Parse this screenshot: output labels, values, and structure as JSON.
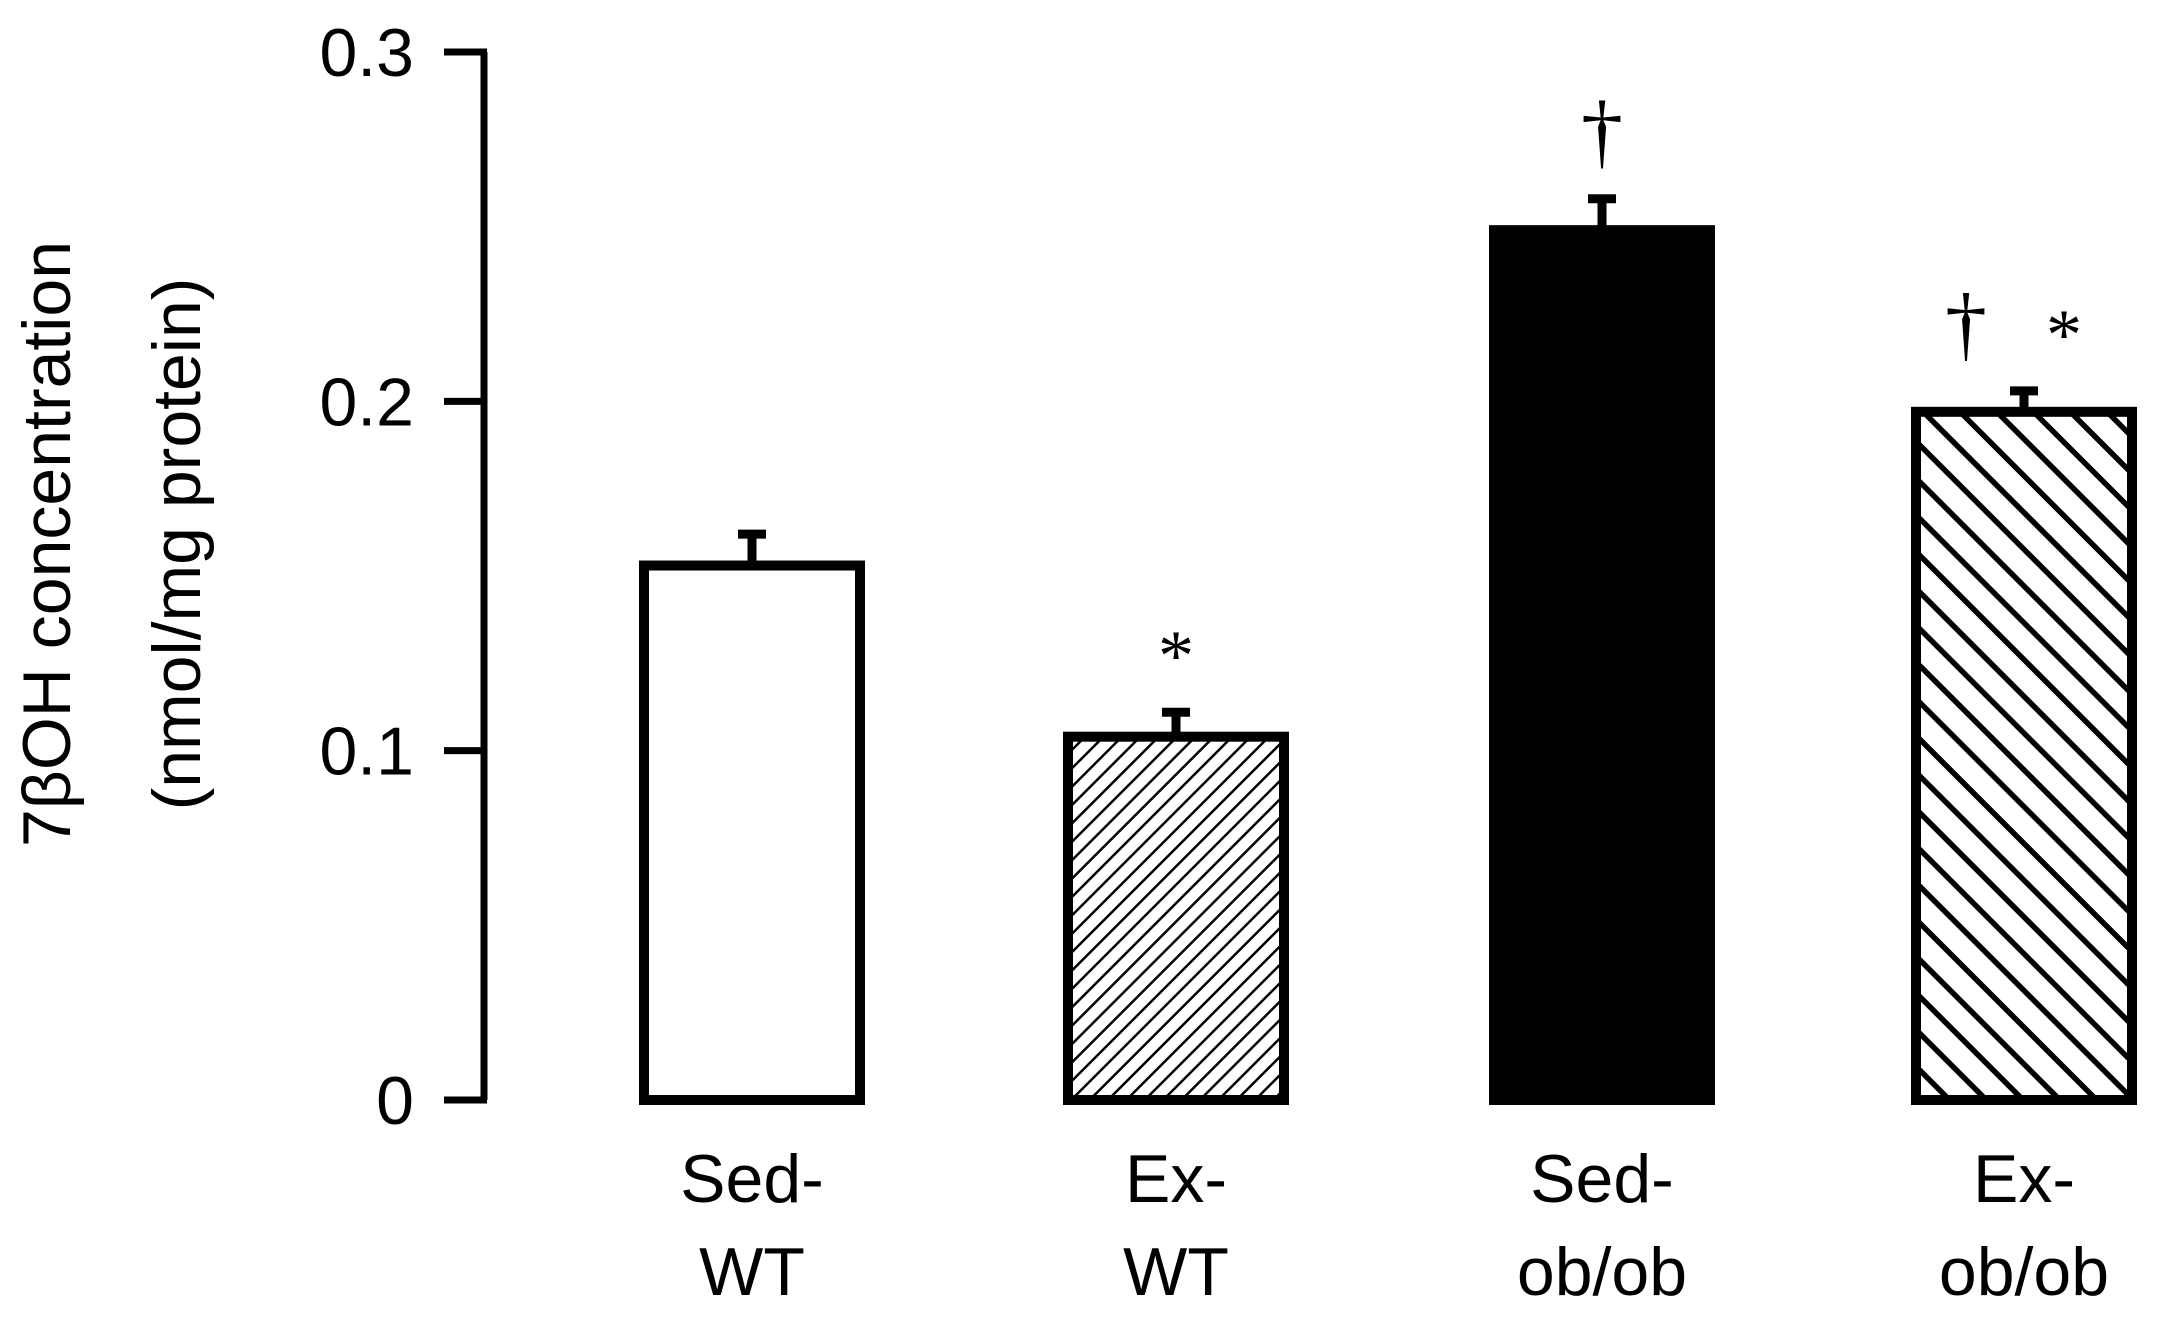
{
  "chart_data": {
    "type": "bar",
    "title": "",
    "xlabel": "",
    "ylabel_lines": [
      "7βOH concentration",
      "(nmol/mg protein)"
    ],
    "ylim": [
      0,
      0.3
    ],
    "yticks": [
      {
        "value": 0,
        "label": "0"
      },
      {
        "value": 0.1,
        "label": "0.1"
      },
      {
        "value": 0.2,
        "label": "0.2"
      },
      {
        "value": 0.3,
        "label": "0.3"
      }
    ],
    "categories": [
      {
        "lines": [
          "Sed-",
          "WT"
        ],
        "value": 0.153,
        "error": 0.009,
        "fill": "white",
        "annotation": ""
      },
      {
        "lines": [
          "Ex-",
          "WT"
        ],
        "value": 0.104,
        "error": 0.007,
        "fill": "fine-hatch",
        "annotation": "*"
      },
      {
        "lines": [
          "Sed-",
          "ob/ob"
        ],
        "value": 0.249,
        "error": 0.009,
        "fill": "black",
        "annotation": "†"
      },
      {
        "lines": [
          "Ex-",
          "ob/ob"
        ],
        "value": 0.197,
        "error": 0.006,
        "fill": "coarse-hatch",
        "annotation": "† *"
      }
    ],
    "colors": {
      "ink": "#000000",
      "background": "#ffffff"
    }
  }
}
